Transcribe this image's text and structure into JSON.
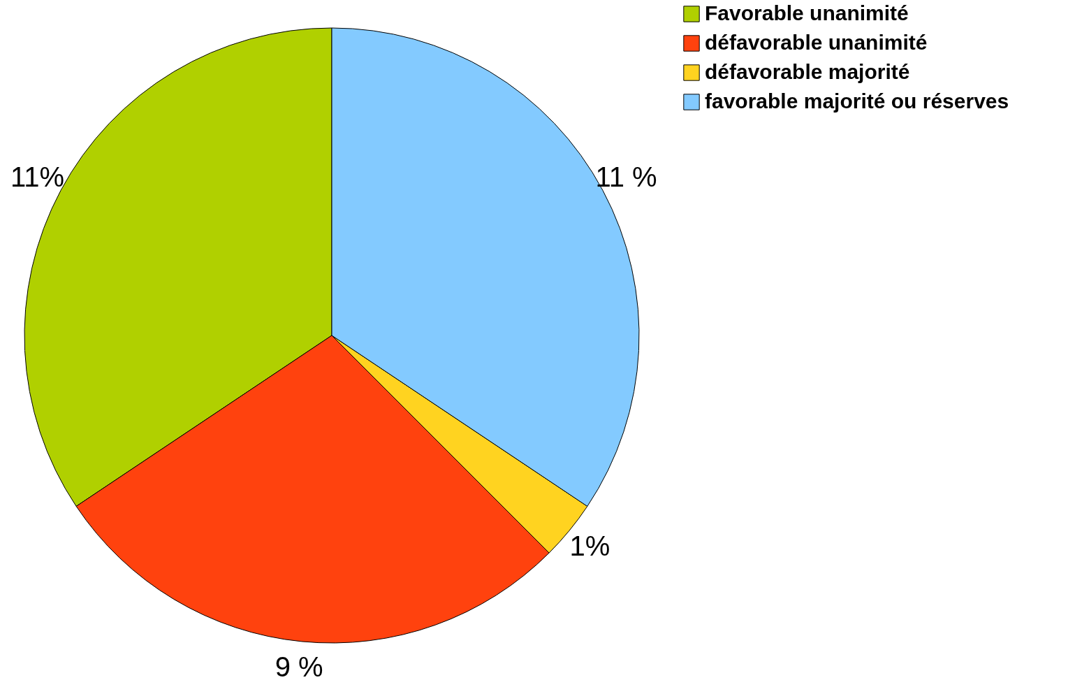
{
  "chart_data": {
    "type": "pie",
    "categories": [
      "Favorable unanimité",
      "défavorable unanimité",
      "défavorable majorité",
      "favorable majorité ou réserves"
    ],
    "values": [
      11,
      9,
      1,
      11
    ],
    "colors": [
      "#b0d000",
      "#ff420e",
      "#ffd320",
      "#83caff"
    ],
    "value_labels": [
      "11%",
      "9 %",
      "1%",
      "11 %"
    ],
    "legend": "right"
  }
}
